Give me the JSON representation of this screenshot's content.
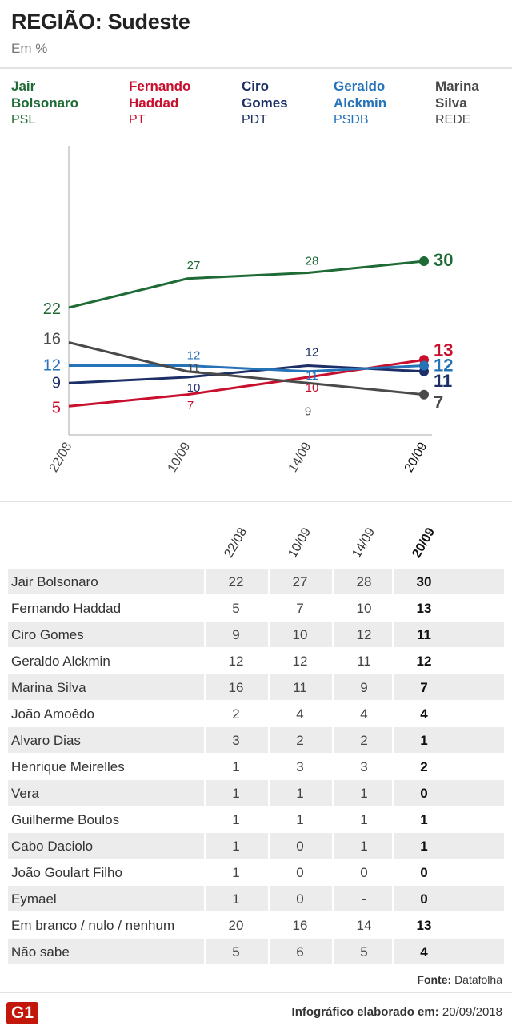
{
  "title": "REGIÃO: Sudeste",
  "subtitle": "Em %",
  "legend": [
    {
      "name": "Jair Bolsonaro",
      "line1": "Jair",
      "line2": "Bolsonaro",
      "party": "PSL",
      "color": "#1e6b35"
    },
    {
      "name": "Fernando Haddad",
      "line1": "Fernando",
      "line2": "Haddad",
      "party": "PT",
      "color": "#c8102e"
    },
    {
      "name": "Ciro Gomes",
      "line1": "Ciro",
      "line2": "Gomes",
      "party": "PDT",
      "color": "#1c2f66"
    },
    {
      "name": "Geraldo Alckmin",
      "line1": "Geraldo",
      "line2": "Alckmin",
      "party": "PSDB",
      "color": "#2673b8"
    },
    {
      "name": "Marina Silva",
      "line1": "Marina",
      "line2": "Silva",
      "party": "REDE",
      "color": "#4a4a4a"
    }
  ],
  "chart_data": {
    "type": "line",
    "x": [
      "22/08",
      "10/09",
      "14/09",
      "20/09"
    ],
    "ylabel": "%",
    "ylim": [
      0,
      50
    ],
    "series": [
      {
        "name": "Jair Bolsonaro",
        "values": [
          22,
          27,
          28,
          30
        ],
        "color": "#1e6b35"
      },
      {
        "name": "Fernando Haddad",
        "values": [
          5,
          7,
          10,
          13
        ],
        "color": "#c8102e"
      },
      {
        "name": "Ciro Gomes",
        "values": [
          9,
          10,
          12,
          11
        ],
        "color": "#1c2f66"
      },
      {
        "name": "Geraldo Alckmin",
        "values": [
          12,
          12,
          11,
          12
        ],
        "color": "#2673b8"
      },
      {
        "name": "Marina Silva",
        "values": [
          16,
          11,
          9,
          7
        ],
        "color": "#4a4a4a"
      }
    ]
  },
  "table": {
    "headers": [
      "22/08",
      "10/09",
      "14/09",
      "20/09"
    ],
    "rows": [
      {
        "name": "Jair Bolsonaro",
        "values": [
          "22",
          "27",
          "28",
          "30"
        ]
      },
      {
        "name": "Fernando Haddad",
        "values": [
          "5",
          "7",
          "10",
          "13"
        ]
      },
      {
        "name": "Ciro Gomes",
        "values": [
          "9",
          "10",
          "12",
          "11"
        ]
      },
      {
        "name": "Geraldo Alckmin",
        "values": [
          "12",
          "12",
          "11",
          "12"
        ]
      },
      {
        "name": "Marina Silva",
        "values": [
          "16",
          "11",
          "9",
          "7"
        ]
      },
      {
        "name": "João Amoêdo",
        "values": [
          "2",
          "4",
          "4",
          "4"
        ]
      },
      {
        "name": "Alvaro Dias",
        "values": [
          "3",
          "2",
          "2",
          "1"
        ]
      },
      {
        "name": "Henrique Meirelles",
        "values": [
          "1",
          "3",
          "3",
          "2"
        ]
      },
      {
        "name": "Vera",
        "values": [
          "1",
          "1",
          "1",
          "0"
        ]
      },
      {
        "name": "Guilherme Boulos",
        "values": [
          "1",
          "1",
          "1",
          "1"
        ]
      },
      {
        "name": "Cabo Daciolo",
        "values": [
          "1",
          "0",
          "1",
          "1"
        ]
      },
      {
        "name": "João Goulart Filho",
        "values": [
          "1",
          "0",
          "0",
          "0"
        ]
      },
      {
        "name": "Eymael",
        "values": [
          "1",
          "0",
          "-",
          "0"
        ]
      },
      {
        "name": "Em branco / nulo / nenhum",
        "values": [
          "20",
          "16",
          "14",
          "13"
        ]
      },
      {
        "name": "Não sabe",
        "values": [
          "5",
          "6",
          "5",
          "4"
        ]
      }
    ]
  },
  "source_label": "Fonte:",
  "source": "Datafolha",
  "logo": "G1",
  "credit_label": "Infográfico elaborado em:",
  "credit_date": "20/09/2018"
}
